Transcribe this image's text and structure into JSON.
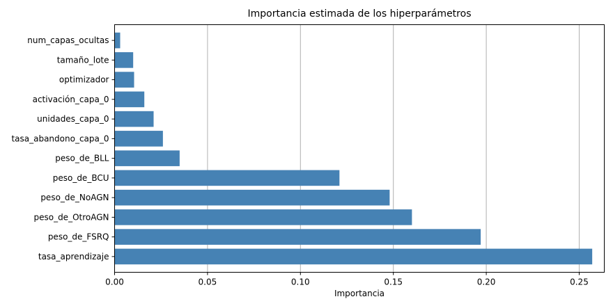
{
  "chart_data": {
    "type": "bar",
    "orientation": "horizontal",
    "title": "Importancia estimada de los hiperparámetros",
    "xlabel": "Importancia",
    "ylabel": "",
    "categories": [
      "tasa_aprendizaje",
      "peso_de_FSRQ",
      "peso_de_OtroAGN",
      "peso_de_NoAGN",
      "peso_de_BCU",
      "peso_de_BLL",
      "tasa_abandono_capa_0",
      "unidades_capa_0",
      "activación_capa_0",
      "optimizador",
      "tamaño_lote",
      "num_capas_ocultas"
    ],
    "values": [
      0.257,
      0.197,
      0.16,
      0.148,
      0.121,
      0.035,
      0.026,
      0.021,
      0.016,
      0.0105,
      0.01,
      0.003
    ],
    "xlim": [
      0,
      0.2635
    ],
    "xticks": [
      0.0,
      0.05,
      0.1,
      0.15,
      0.2,
      0.25
    ],
    "xtick_labels": [
      "0.00",
      "0.05",
      "0.10",
      "0.15",
      "0.20",
      "0.25"
    ],
    "grid": "vertical",
    "bar_color": "#4682b4",
    "grid_color": "#b0b0b0"
  }
}
